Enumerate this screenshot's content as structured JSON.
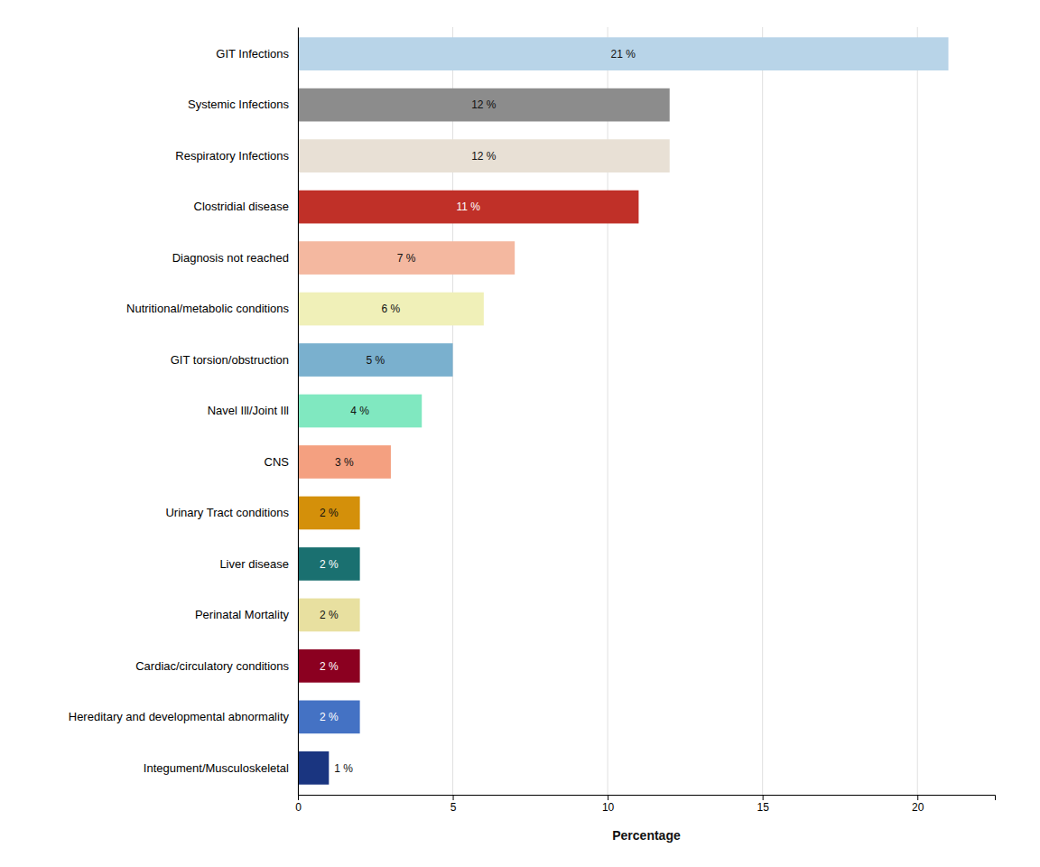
{
  "chart_data": {
    "type": "bar",
    "orientation": "horizontal",
    "categories": [
      "GIT Infections",
      "Systemic Infections",
      "Respiratory Infections",
      "Clostridial disease",
      "Diagnosis not reached",
      "Nutritional/metabolic conditions",
      "GIT torsion/obstruction",
      "Navel Ill/Joint Ill",
      "CNS",
      "Urinary Tract conditions",
      "Liver disease",
      "Perinatal Mortality",
      "Cardiac/circulatory conditions",
      "Hereditary and developmental abnormality",
      "Integument/Musculoskeletal"
    ],
    "values": [
      21,
      12,
      12,
      11,
      7,
      6,
      5,
      4,
      3,
      2,
      2,
      2,
      2,
      2,
      1
    ],
    "value_labels": [
      "21 %",
      "12 %",
      "12 %",
      "11 %",
      "7 %",
      "6 %",
      "5 %",
      "4 %",
      "3 %",
      "2 %",
      "2 %",
      "2 %",
      "2 %",
      "2 %",
      "1 %"
    ],
    "colors": [
      "#b8d4e8",
      "#8c8c8c",
      "#e8e0d5",
      "#c03028",
      "#f4b8a0",
      "#f0f0b8",
      "#7ab0ce",
      "#80e8c0",
      "#f4a080",
      "#d4900a",
      "#1a7070",
      "#e8e0a0",
      "#8b0020",
      "#4472c4",
      "#1a3580"
    ],
    "xlabel": "Percentage",
    "xlim": [
      0,
      22.5
    ],
    "xticks": [
      0,
      5,
      10,
      15,
      20
    ],
    "grid": true,
    "data_labels": true
  }
}
